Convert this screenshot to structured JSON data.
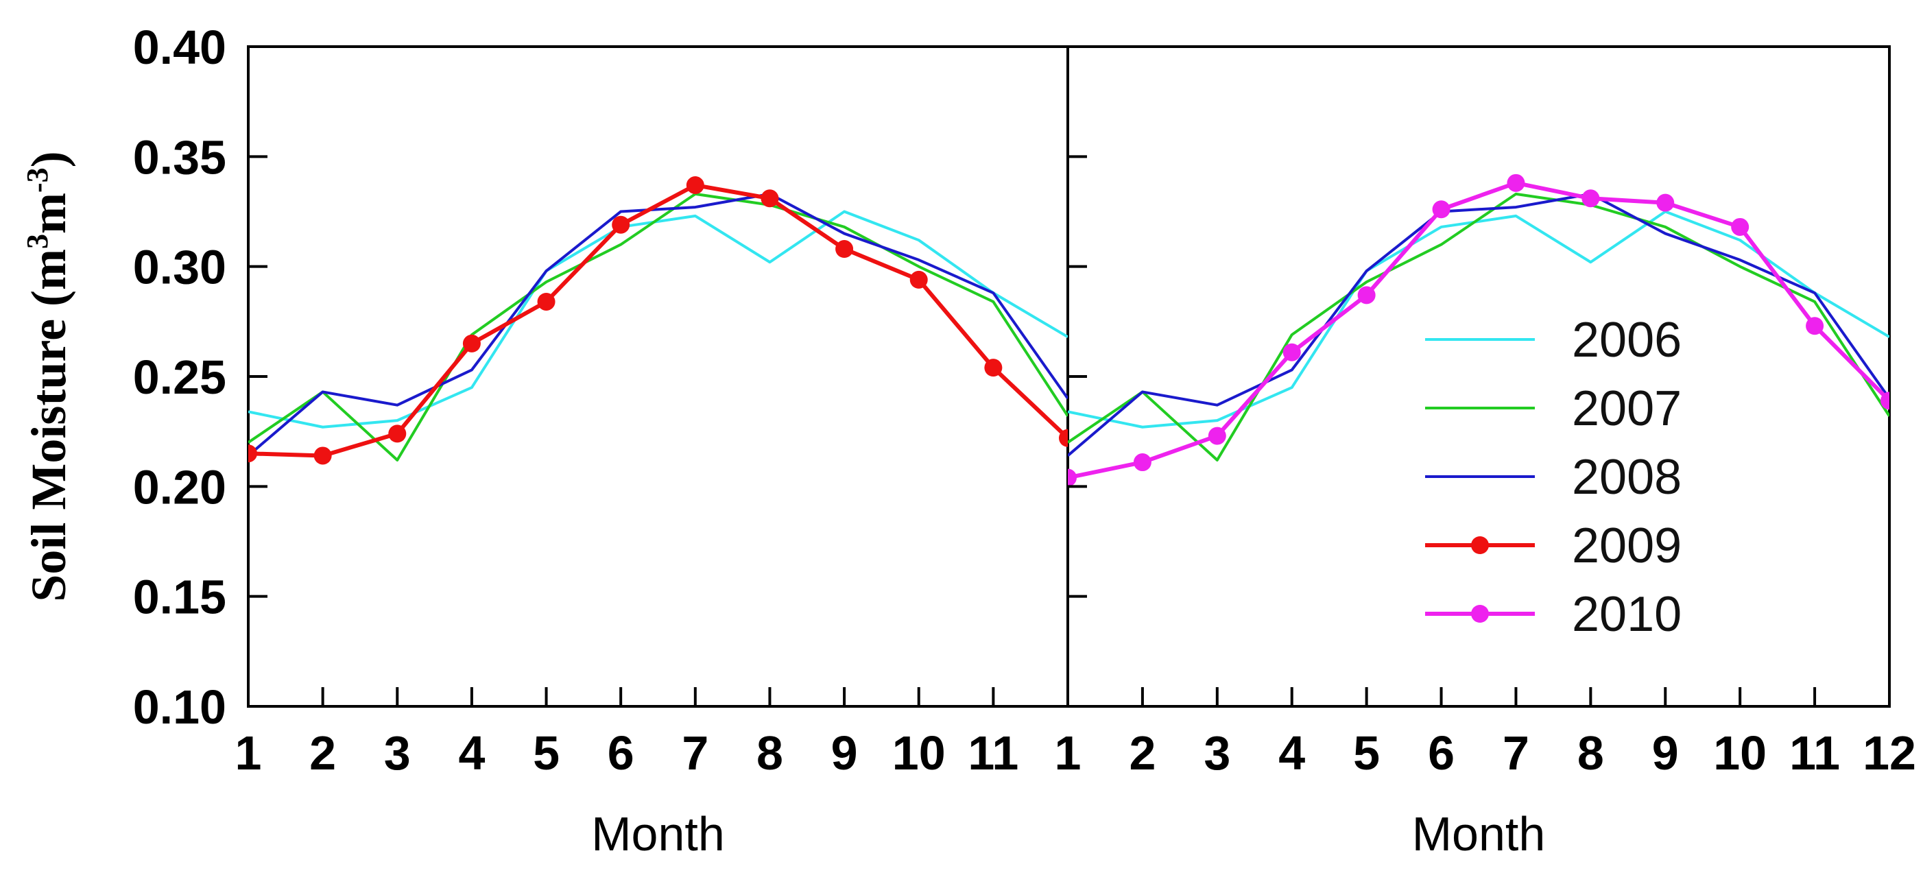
{
  "chart_data": [
    {
      "type": "line",
      "panel": "left",
      "xlabel": "Month",
      "ylabel": "Soil Moisture",
      "ylabel_unit": "(m3m-3)",
      "x": [
        1,
        2,
        3,
        4,
        5,
        6,
        7,
        8,
        9,
        10,
        11,
        12
      ],
      "xtick_labels": [
        "1",
        "2",
        "3",
        "4",
        "5",
        "6",
        "7",
        "8",
        "9",
        "10",
        "11"
      ],
      "ylim": [
        0.1,
        0.4
      ],
      "yticks": [
        0.1,
        0.15,
        0.2,
        0.25,
        0.3,
        0.35,
        0.4
      ],
      "ytick_labels": [
        "0.10",
        "0.15",
        "0.20",
        "0.25",
        "0.30",
        "0.35",
        "0.40"
      ],
      "series": [
        {
          "name": "2006",
          "color": "#33e6f0",
          "marker": false,
          "values": [
            0.234,
            0.227,
            0.23,
            0.245,
            0.298,
            0.318,
            0.323,
            0.302,
            0.325,
            0.312,
            0.288,
            0.268
          ]
        },
        {
          "name": "2007",
          "color": "#22cc22",
          "marker": false,
          "values": [
            0.22,
            0.243,
            0.212,
            0.269,
            0.293,
            0.31,
            0.333,
            0.328,
            0.318,
            0.3,
            0.284,
            0.232
          ]
        },
        {
          "name": "2008",
          "color": "#1a1acc",
          "marker": false,
          "values": [
            0.214,
            0.243,
            0.237,
            0.253,
            0.298,
            0.325,
            0.327,
            0.333,
            0.315,
            0.303,
            0.288,
            0.24
          ]
        },
        {
          "name": "2009",
          "color": "#ee1111",
          "marker": true,
          "values": [
            0.215,
            0.214,
            0.224,
            0.265,
            0.284,
            0.319,
            0.337,
            0.331,
            0.308,
            0.294,
            0.254,
            0.222
          ]
        }
      ]
    },
    {
      "type": "line",
      "panel": "right",
      "xlabel": "Month",
      "x": [
        1,
        2,
        3,
        4,
        5,
        6,
        7,
        8,
        9,
        10,
        11,
        12
      ],
      "xtick_labels": [
        "1",
        "2",
        "3",
        "4",
        "5",
        "6",
        "7",
        "8",
        "9",
        "10",
        "11",
        "12"
      ],
      "ylim": [
        0.1,
        0.4
      ],
      "series": [
        {
          "name": "2006",
          "color": "#33e6f0",
          "marker": false,
          "values": [
            0.234,
            0.227,
            0.23,
            0.245,
            0.298,
            0.318,
            0.323,
            0.302,
            0.325,
            0.312,
            0.288,
            0.268
          ]
        },
        {
          "name": "2007",
          "color": "#22cc22",
          "marker": false,
          "values": [
            0.22,
            0.243,
            0.212,
            0.269,
            0.293,
            0.31,
            0.333,
            0.328,
            0.318,
            0.3,
            0.284,
            0.232
          ]
        },
        {
          "name": "2008",
          "color": "#1a1acc",
          "marker": false,
          "values": [
            0.214,
            0.243,
            0.237,
            0.253,
            0.298,
            0.325,
            0.327,
            0.333,
            0.315,
            0.303,
            0.288,
            0.24
          ]
        },
        {
          "name": "2010",
          "color": "#ee22ee",
          "marker": true,
          "values": [
            0.204,
            0.211,
            0.223,
            0.261,
            0.287,
            0.326,
            0.338,
            0.331,
            0.329,
            0.318,
            0.273,
            0.239
          ]
        }
      ],
      "legend": {
        "placement": "right",
        "entries": [
          {
            "label": "2006",
            "color": "#33e6f0",
            "marker": false
          },
          {
            "label": "2007",
            "color": "#22cc22",
            "marker": false
          },
          {
            "label": "2008",
            "color": "#1a1acc",
            "marker": false
          },
          {
            "label": "2009",
            "color": "#ee1111",
            "marker": true
          },
          {
            "label": "2010",
            "color": "#ee22ee",
            "marker": true
          }
        ]
      }
    }
  ]
}
